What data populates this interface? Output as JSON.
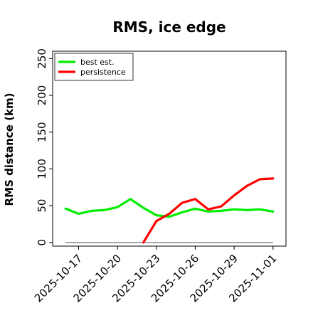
{
  "chart_data": {
    "type": "line",
    "title": "RMS, ice edge",
    "xlabel": "",
    "ylabel": "RMS distance (km)",
    "ylim": [
      -5,
      260
    ],
    "xlim": [
      "2025-10-15",
      "2025-11-02"
    ],
    "yticks": [
      0,
      50,
      100,
      150,
      200,
      250
    ],
    "xticks": [
      "2025-10-17",
      "2025-10-20",
      "2025-10-23",
      "2025-10-26",
      "2025-10-29",
      "2025-11-01"
    ],
    "grid": false,
    "legend": "top-left",
    "baseline": {
      "x": [
        "2025-10-16",
        "2025-11-01"
      ],
      "values": [
        0,
        0
      ],
      "color": "#808080"
    },
    "series": [
      {
        "name": "best est.",
        "color": "#00ee00",
        "x": [
          "2025-10-16",
          "2025-10-17",
          "2025-10-18",
          "2025-10-19",
          "2025-10-20",
          "2025-10-21",
          "2025-10-22",
          "2025-10-23",
          "2025-10-24",
          "2025-10-25",
          "2025-10-26",
          "2025-10-27",
          "2025-10-28",
          "2025-10-29",
          "2025-10-30",
          "2025-10-31",
          "2025-11-01"
        ],
        "values": [
          46,
          39,
          43,
          44,
          48,
          59,
          47,
          37,
          35,
          41,
          46,
          42,
          43,
          45,
          44,
          45,
          42
        ]
      },
      {
        "name": "persistence",
        "color": "#ff0000",
        "x": [
          "2025-10-22",
          "2025-10-23",
          "2025-10-24",
          "2025-10-25",
          "2025-10-26",
          "2025-10-27",
          "2025-10-28",
          "2025-10-29",
          "2025-10-30",
          "2025-10-31",
          "2025-11-01"
        ],
        "values": [
          0,
          29,
          39,
          54,
          59,
          45,
          49,
          64,
          77,
          86,
          87
        ]
      }
    ]
  }
}
